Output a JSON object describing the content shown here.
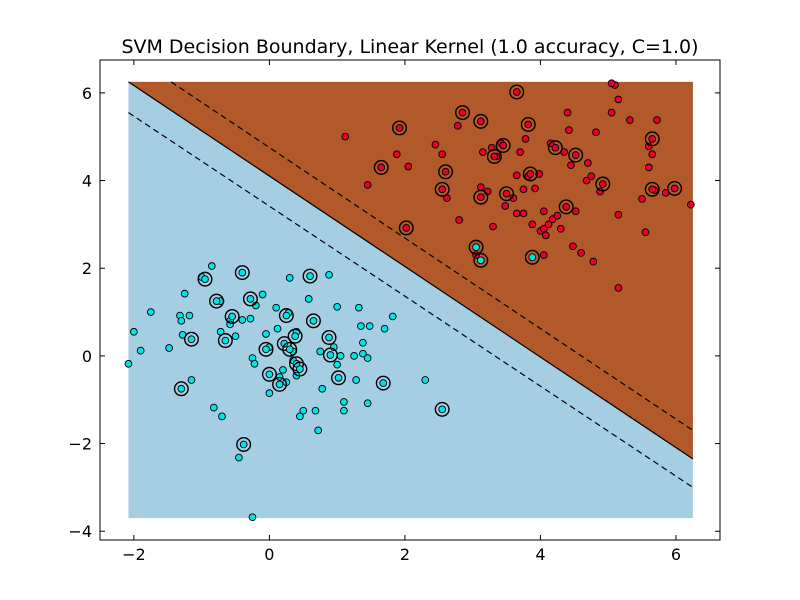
{
  "chart_data": {
    "type": "scatter",
    "title": "SVM Decision Boundary, Linear Kernel (1.0 accuracy, C=1.0)",
    "xlabel": "",
    "ylabel": "",
    "xlim": [
      -2.5,
      6.65
    ],
    "ylim": [
      -4.2,
      6.75
    ],
    "grid": false,
    "legend": "none",
    "x_ticks": [
      -2,
      0,
      2,
      4,
      6
    ],
    "y_ticks": [
      -4,
      -2,
      0,
      2,
      4,
      6
    ],
    "x_tick_labels": [
      "−2",
      "0",
      "2",
      "4",
      "6"
    ],
    "y_tick_labels": [
      "−4",
      "−2",
      "0",
      "2",
      "4",
      "6"
    ],
    "region_extent": {
      "x": [
        -2.08,
        6.25
      ],
      "y": [
        -3.7,
        6.25
      ]
    },
    "decision_boundary": {
      "x": [
        -2.08,
        6.25
      ],
      "y": [
        6.25,
        -2.35
      ]
    },
    "margin_upper": {
      "x": [
        -1.45,
        6.25
      ],
      "y": [
        6.25,
        -1.7
      ]
    },
    "margin_lower": {
      "x": [
        -2.08,
        6.25
      ],
      "y": [
        5.55,
        -3.0
      ]
    },
    "colors": {
      "class_negative_region": "#a6cee3",
      "class_positive_region": "#b15928",
      "class_negative_point": "#00e5e5",
      "class_positive_point": "#e8002a",
      "support_vector_ring": "#000000",
      "boundary_line": "#000000"
    },
    "series": [
      {
        "class": "negative",
        "points": [
          [
            -2.08,
            -0.18
          ],
          [
            -2.0,
            0.55
          ],
          [
            -1.9,
            0.12
          ],
          [
            -1.75,
            1.0
          ],
          [
            -1.48,
            0.18
          ],
          [
            -1.32,
            0.92
          ],
          [
            -1.3,
            0.8
          ],
          [
            -1.25,
            1.42
          ],
          [
            -1.28,
            0.48
          ],
          [
            -1.18,
            0.92
          ],
          [
            -1.15,
            -0.55
          ],
          [
            -1.0,
            1.8
          ],
          [
            -0.85,
            2.05
          ],
          [
            -0.82,
            -1.18
          ],
          [
            -0.72,
            1.25
          ],
          [
            -0.72,
            0.55
          ],
          [
            -0.7,
            -1.38
          ],
          [
            -0.58,
            0.8
          ],
          [
            -0.58,
            0.72
          ],
          [
            -0.5,
            0.45
          ],
          [
            -0.45,
            -2.32
          ],
          [
            -0.4,
            0.82
          ],
          [
            -0.28,
            0.85
          ],
          [
            -0.25,
            -0.05
          ],
          [
            -0.22,
            -0.18
          ],
          [
            -0.2,
            1.15
          ],
          [
            -0.1,
            1.4
          ],
          [
            -0.05,
            0.5
          ],
          [
            0.0,
            -0.85
          ],
          [
            0.0,
            0.2
          ],
          [
            0.1,
            1.1
          ],
          [
            0.15,
            -0.48
          ],
          [
            0.25,
            -0.6
          ],
          [
            0.28,
            0.98
          ],
          [
            0.3,
            1.78
          ],
          [
            0.35,
            -0.1
          ],
          [
            0.35,
            0.1
          ],
          [
            0.4,
            -0.45
          ],
          [
            0.4,
            0.55
          ],
          [
            0.45,
            -1.38
          ],
          [
            0.5,
            -1.25
          ],
          [
            0.58,
            1.3
          ],
          [
            0.68,
            -1.25
          ],
          [
            0.72,
            -1.7
          ],
          [
            0.75,
            0.1
          ],
          [
            0.78,
            -0.75
          ],
          [
            0.88,
            1.85
          ],
          [
            0.95,
            0.2
          ],
          [
            1.0,
            1.12
          ],
          [
            1.0,
            -0.2
          ],
          [
            1.05,
            0.0
          ],
          [
            1.1,
            -1.05
          ],
          [
            1.1,
            -1.25
          ],
          [
            1.25,
            -0.0
          ],
          [
            1.28,
            -0.55
          ],
          [
            1.32,
            1.1
          ],
          [
            1.35,
            0.68
          ],
          [
            1.38,
            0.3
          ],
          [
            1.38,
            0.05
          ],
          [
            1.45,
            -1.08
          ],
          [
            1.45,
            -0.05
          ],
          [
            1.48,
            0.68
          ],
          [
            1.7,
            0.62
          ],
          [
            1.82,
            0.9
          ],
          [
            2.3,
            -0.55
          ],
          [
            -0.25,
            -3.68
          ],
          [
            0.12,
            0.62
          ],
          [
            0.2,
            -0.32
          ]
        ]
      },
      {
        "class": "positive",
        "points": [
          [
            1.12,
            5.0
          ],
          [
            1.45,
            3.9
          ],
          [
            1.88,
            4.6
          ],
          [
            2.05,
            4.32
          ],
          [
            2.45,
            4.82
          ],
          [
            2.55,
            4.6
          ],
          [
            2.62,
            3.6
          ],
          [
            2.78,
            5.25
          ],
          [
            2.8,
            3.1
          ],
          [
            3.05,
            2.3
          ],
          [
            3.12,
            3.85
          ],
          [
            3.15,
            4.65
          ],
          [
            3.22,
            3.75
          ],
          [
            3.28,
            4.75
          ],
          [
            3.3,
            2.95
          ],
          [
            3.35,
            4.55
          ],
          [
            3.42,
            4.85
          ],
          [
            3.48,
            3.42
          ],
          [
            3.6,
            3.6
          ],
          [
            3.65,
            4.12
          ],
          [
            3.65,
            3.25
          ],
          [
            3.7,
            4.65
          ],
          [
            3.75,
            3.8
          ],
          [
            3.75,
            3.25
          ],
          [
            3.78,
            4.95
          ],
          [
            3.82,
            4.1
          ],
          [
            3.88,
            3.0
          ],
          [
            3.92,
            3.82
          ],
          [
            3.98,
            4.15
          ],
          [
            4.0,
            2.85
          ],
          [
            4.05,
            3.3
          ],
          [
            4.05,
            2.3
          ],
          [
            4.05,
            2.9
          ],
          [
            4.08,
            2.75
          ],
          [
            4.12,
            3.0
          ],
          [
            4.15,
            4.85
          ],
          [
            4.18,
            3.12
          ],
          [
            4.25,
            3.2
          ],
          [
            4.3,
            2.9
          ],
          [
            4.35,
            4.65
          ],
          [
            4.4,
            5.55
          ],
          [
            4.42,
            5.15
          ],
          [
            4.45,
            4.35
          ],
          [
            4.48,
            2.5
          ],
          [
            4.52,
            3.3
          ],
          [
            4.6,
            2.35
          ],
          [
            4.68,
            4.0
          ],
          [
            4.7,
            4.4
          ],
          [
            4.75,
            4.1
          ],
          [
            4.78,
            2.15
          ],
          [
            4.82,
            5.1
          ],
          [
            4.88,
            3.75
          ],
          [
            5.05,
            5.55
          ],
          [
            5.1,
            6.18
          ],
          [
            5.15,
            5.85
          ],
          [
            5.15,
            3.22
          ],
          [
            5.15,
            1.55
          ],
          [
            5.32,
            5.38
          ],
          [
            5.5,
            3.58
          ],
          [
            5.55,
            2.82
          ],
          [
            5.6,
            4.3
          ],
          [
            5.6,
            4.78
          ],
          [
            5.65,
            4.6
          ],
          [
            5.68,
            3.78
          ],
          [
            5.72,
            5.38
          ],
          [
            5.85,
            3.72
          ],
          [
            6.22,
            3.45
          ],
          [
            5.05,
            6.22
          ]
        ]
      }
    ],
    "support_vectors": [
      [
        -1.3,
        -0.75
      ],
      [
        -1.15,
        0.38
      ],
      [
        -0.95,
        1.75
      ],
      [
        -0.78,
        1.25
      ],
      [
        -0.65,
        0.35
      ],
      [
        -0.55,
        0.9
      ],
      [
        -0.4,
        1.9
      ],
      [
        -0.38,
        -2.02
      ],
      [
        -0.28,
        1.3
      ],
      [
        -0.05,
        0.15
      ],
      [
        0.0,
        -0.42
      ],
      [
        0.15,
        -0.65
      ],
      [
        0.22,
        0.28
      ],
      [
        0.25,
        0.92
      ],
      [
        0.3,
        0.15
      ],
      [
        0.38,
        0.45
      ],
      [
        0.4,
        -0.18
      ],
      [
        0.45,
        -0.3
      ],
      [
        0.6,
        1.82
      ],
      [
        0.65,
        0.8
      ],
      [
        0.88,
        0.42
      ],
      [
        0.9,
        0.02
      ],
      [
        1.02,
        -0.5
      ],
      [
        1.68,
        -0.62
      ],
      [
        2.55,
        -1.22
      ],
      [
        1.92,
        5.2
      ],
      [
        1.65,
        4.3
      ],
      [
        2.02,
        2.92
      ],
      [
        2.55,
        3.8
      ],
      [
        2.6,
        4.2
      ],
      [
        2.85,
        5.55
      ],
      [
        3.05,
        2.48
      ],
      [
        3.12,
        5.35
      ],
      [
        3.12,
        3.62
      ],
      [
        3.12,
        2.18
      ],
      [
        3.32,
        4.55
      ],
      [
        3.45,
        4.8
      ],
      [
        3.5,
        3.7
      ],
      [
        3.65,
        6.02
      ],
      [
        3.82,
        5.28
      ],
      [
        3.85,
        4.15
      ],
      [
        3.88,
        2.25
      ],
      [
        4.22,
        4.75
      ],
      [
        4.38,
        3.4
      ],
      [
        4.52,
        4.58
      ],
      [
        4.92,
        3.92
      ],
      [
        5.65,
        4.95
      ],
      [
        5.65,
        3.8
      ],
      [
        5.98,
        3.82
      ]
    ]
  }
}
